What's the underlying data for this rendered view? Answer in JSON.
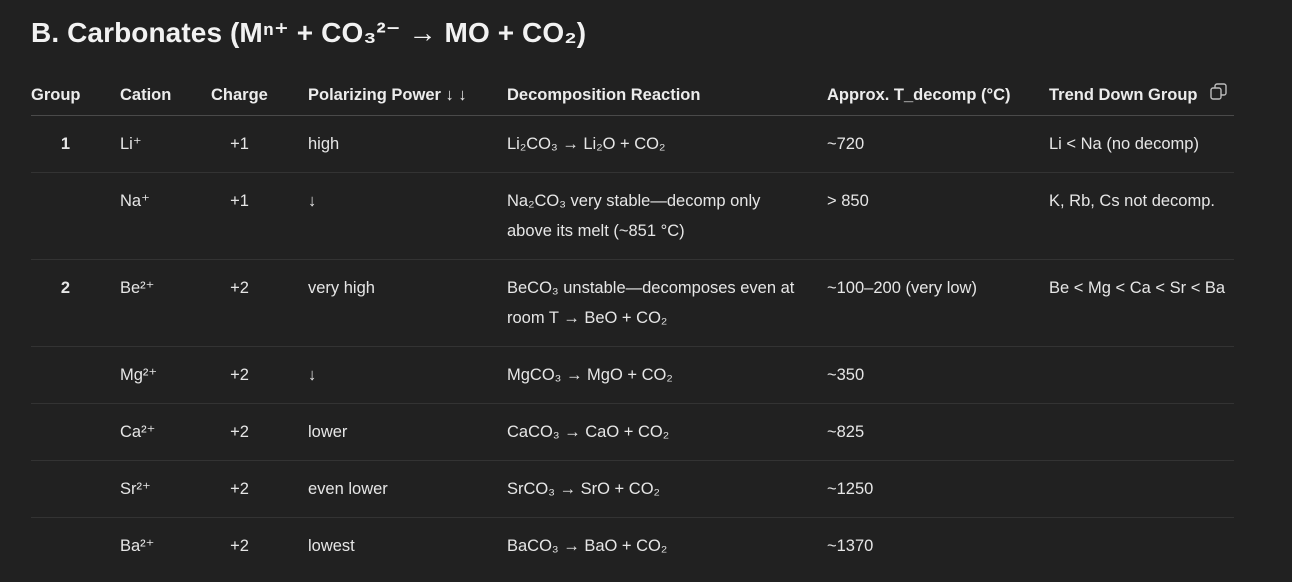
{
  "heading": "B. Carbonates (Mⁿ⁺ + CO₃²⁻ → MO + CO₂)",
  "table": {
    "headers": {
      "group": "Group",
      "cation": "Cation",
      "charge": "Charge",
      "polarizing": "Polarizing Power ↓ ↓",
      "reaction": "Decomposition Reaction",
      "temp": "Approx. T_decomp (°C)",
      "trend": "Trend Down Group"
    },
    "rows": [
      {
        "group": "1",
        "cation": "Li⁺",
        "charge": "+1",
        "polarizing": "high",
        "reaction": "Li₂CO₃ → Li₂O + CO₂",
        "temp": "~720",
        "trend": "Li < Na (no decomp)"
      },
      {
        "group": "",
        "cation": "Na⁺",
        "charge": "+1",
        "polarizing": "↓",
        "reaction": "Na₂CO₃ very stable—decomp only above its melt (~851 °C)",
        "temp": "> 850",
        "trend": "K, Rb, Cs not decomp."
      },
      {
        "group": "2",
        "cation": "Be²⁺",
        "charge": "+2",
        "polarizing": "very high",
        "reaction": "BeCO₃ unstable—decomposes even at room T → BeO + CO₂",
        "temp": "~100–200 (very low)",
        "trend": "Be < Mg < Ca < Sr < Ba"
      },
      {
        "group": "",
        "cation": "Mg²⁺",
        "charge": "+2",
        "polarizing": "↓",
        "reaction": "MgCO₃ → MgO + CO₂",
        "temp": "~350",
        "trend": ""
      },
      {
        "group": "",
        "cation": "Ca²⁺",
        "charge": "+2",
        "polarizing": "lower",
        "reaction": "CaCO₃ → CaO + CO₂",
        "temp": "~825",
        "trend": ""
      },
      {
        "group": "",
        "cation": "Sr²⁺",
        "charge": "+2",
        "polarizing": "even lower",
        "reaction": "SrCO₃ → SrO + CO₂",
        "temp": "~1250",
        "trend": ""
      },
      {
        "group": "",
        "cation": "Ba²⁺",
        "charge": "+2",
        "polarizing": "lowest",
        "reaction": "BaCO₃ → BaO + CO₂",
        "temp": "~1370",
        "trend": ""
      }
    ]
  },
  "icons": {
    "copy": "copy-icon"
  },
  "colors": {
    "background": "#212121",
    "text": "#ececec",
    "divider": "#333333"
  }
}
